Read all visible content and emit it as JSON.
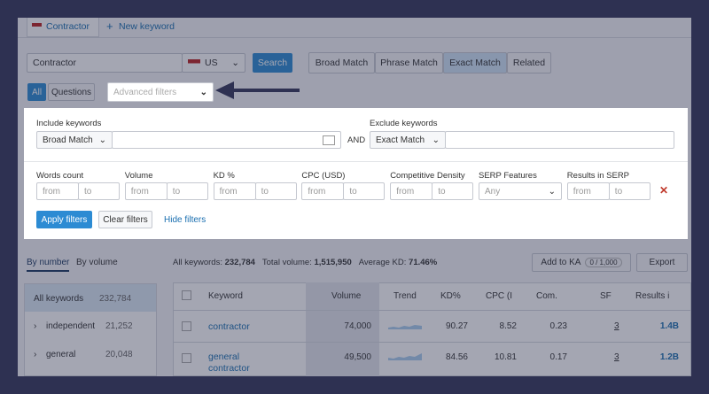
{
  "tabs": [
    "Contractor",
    "New keyword"
  ],
  "search": {
    "query": "Contractor",
    "country": "US",
    "button": "Search"
  },
  "match_types": [
    "Broad Match",
    "Phrase Match",
    "Exact Match",
    "Related"
  ],
  "question_toggle": [
    "All",
    "Questions"
  ],
  "advanced_filters": "Advanced filters",
  "filter_panel": {
    "include_label": "Include keywords",
    "include_match": "Broad Match",
    "and": "AND",
    "exclude_label": "Exclude keywords",
    "exclude_match": "Exact Match",
    "filters": [
      {
        "label": "Words count",
        "from": "from",
        "to": "to"
      },
      {
        "label": "Volume",
        "from": "from",
        "to": "to"
      },
      {
        "label": "KD %",
        "from": "from",
        "to": "to"
      },
      {
        "label": "CPC (USD)",
        "from": "from",
        "to": "to"
      },
      {
        "label": "Competitive Density",
        "from": "from",
        "to": "to"
      },
      {
        "label": "SERP Features",
        "value": "Any"
      },
      {
        "label": "Results in SERP",
        "from": "from",
        "to": "to"
      }
    ],
    "buttons": [
      "Apply filters",
      "Clear filters",
      "Hide filters"
    ]
  },
  "sidebar": {
    "tabs": [
      "By number",
      "By volume"
    ],
    "groups": [
      [
        "All keywords",
        "232,784"
      ],
      [
        "independent",
        "21,252"
      ],
      [
        "general",
        "20,048"
      ]
    ]
  },
  "summary": [
    {
      "label": "All keywords:",
      "value": "232,784"
    },
    {
      "label": "Total volume:",
      "value": "1,515,950"
    },
    {
      "label": "Average KD:",
      "value": "71.46%"
    }
  ],
  "actions": {
    "add": "Add to KA",
    "quota": "0 / 1,000",
    "export": "Export"
  },
  "table": {
    "headers": [
      "Keyword",
      "Volume",
      "Trend",
      "KD%",
      "CPC (I",
      "Com.",
      "SF",
      "Results i"
    ],
    "rows": [
      [
        "contractor",
        "74,000",
        "90.27",
        "8.52",
        "0.23",
        "3",
        "1.4B"
      ],
      [
        "general contractor",
        "49,500",
        "84.56",
        "10.81",
        "0.17",
        "3",
        "1.2B"
      ]
    ]
  }
}
